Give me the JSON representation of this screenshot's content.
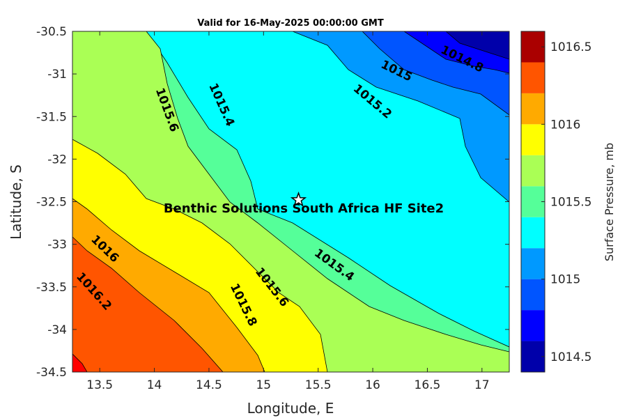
{
  "chart_data": {
    "type": "contour",
    "title": "Valid for 16-May-2025 00:00:00 GMT",
    "xlabel": "Longitude, E",
    "ylabel": "Latitude, S",
    "xlim": [
      13.25,
      17.25
    ],
    "ylim": [
      -34.5,
      -30.5
    ],
    "xticks": [
      "13.5",
      "14",
      "14.5",
      "15",
      "15.5",
      "16",
      "16.5",
      "17"
    ],
    "xtick_values": [
      13.5,
      14,
      14.5,
      15,
      15.5,
      16,
      16.5,
      17
    ],
    "yticks": [
      "-30.5",
      "-31",
      "-31.5",
      "-32",
      "-32.5",
      "-33",
      "-33.5",
      "-34",
      "-34.5"
    ],
    "ytick_values": [
      -30.5,
      -31,
      -31.5,
      -32,
      -32.5,
      -33,
      -33.5,
      -34,
      -34.5
    ],
    "colorbar": {
      "label": "Surface Pressure, mb",
      "range": [
        1014.4,
        1016.6
      ],
      "tick_values": [
        1016.5,
        1016,
        1015.5,
        1015,
        1014.5
      ],
      "tick_labels": [
        "1016.5",
        "1016",
        "1015.5",
        "1015",
        "1014.5"
      ],
      "levels": [
        1014.4,
        1014.6,
        1014.8,
        1015.0,
        1015.2,
        1015.4,
        1015.6,
        1015.8,
        1016.0,
        1016.2,
        1016.4,
        1016.6
      ],
      "colors": [
        "#0000aa",
        "#0000ff",
        "#0055ff",
        "#0099ff",
        "#00ffff",
        "#55ff99",
        "#aaff55",
        "#ffff00",
        "#ffaa00",
        "#ff5500",
        "#ff0000"
      ],
      "top_color": "#aa0000"
    },
    "contour_labels": [
      {
        "text": "1014.8",
        "lon": 16.82,
        "lat": -30.82,
        "angle": 26
      },
      {
        "text": "1015",
        "lon": 16.22,
        "lat": -30.96,
        "angle": 26
      },
      {
        "text": "1015.2",
        "lon": 16.0,
        "lat": -31.32,
        "angle": 40
      },
      {
        "text": "1015.4",
        "lon": 14.62,
        "lat": -31.36,
        "angle": 66
      },
      {
        "text": "1015.6",
        "lon": 14.12,
        "lat": -31.42,
        "angle": 70
      },
      {
        "text": "1015.4",
        "lon": 15.65,
        "lat": -33.24,
        "angle": 36
      },
      {
        "text": "1015.6",
        "lon": 15.08,
        "lat": -33.5,
        "angle": 52
      },
      {
        "text": "1015.8",
        "lon": 14.82,
        "lat": -33.71,
        "angle": 64
      },
      {
        "text": "1016",
        "lon": 13.55,
        "lat": -33.05,
        "angle": 44
      },
      {
        "text": "1016.2",
        "lon": 13.45,
        "lat": -33.55,
        "angle": 48
      }
    ],
    "site": {
      "label": "Benthic Solutions South Africa HF Site2",
      "lon": 15.32,
      "lat": -32.48
    }
  }
}
